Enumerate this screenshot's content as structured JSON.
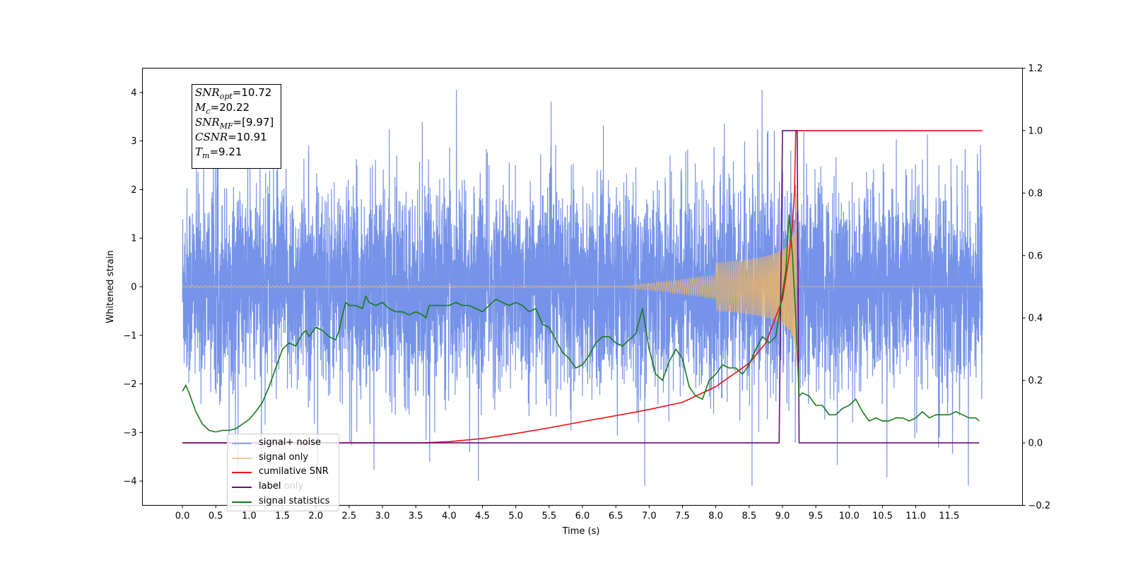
{
  "chart_data": {
    "type": "line",
    "xlabel": "Time (s)",
    "ylabel": "Whitened strain",
    "xlim": [
      -0.6,
      12.6
    ],
    "ylim": [
      -4.5,
      4.5
    ],
    "y2lim": [
      -0.2,
      1.2
    ],
    "x_ticks": [
      0.0,
      0.5,
      1.0,
      1.5,
      2.0,
      2.5,
      3.0,
      3.5,
      4.0,
      4.5,
      5.0,
      5.5,
      6.0,
      6.5,
      7.0,
      7.5,
      8.0,
      8.5,
      9.0,
      9.5,
      10.0,
      10.5,
      11.0,
      11.5
    ],
    "x_tick_labels": [
      "0.0",
      "0.5",
      "1.0",
      "1.5",
      "2.0",
      "2.5",
      "3.0",
      "3.5",
      "4.0",
      "4.5",
      "5.0",
      "5.5",
      "6.0",
      "6.5",
      "7.0",
      "7.5",
      "8.0",
      "8.5",
      "9.0",
      "9.5",
      "10.0",
      "10.5",
      "11.0",
      "11.5"
    ],
    "y_ticks": [
      -4,
      -3,
      -2,
      -1,
      0,
      1,
      2,
      3,
      4
    ],
    "y_tick_labels": [
      "−4",
      "−3",
      "−2",
      "−1",
      "0",
      "1",
      "2",
      "3",
      "4"
    ],
    "y2_ticks": [
      -0.2,
      0.0,
      0.2,
      0.4,
      0.6,
      0.8,
      1.0,
      1.2
    ],
    "y2_tick_labels": [
      "−0.2",
      "0.0",
      "0.2",
      "0.4",
      "0.6",
      "0.8",
      "1.0",
      "1.2"
    ],
    "grid": false,
    "legend_placement": "lower-left",
    "series": [
      {
        "name": "signal+ noise",
        "axis": "left",
        "color": "#6f8de8",
        "x_range": [
          0.0,
          12.0
        ],
        "approx_amplitude": 1.5,
        "approx_max": 4.05,
        "approx_min": -4.1
      },
      {
        "name": "signal only",
        "axis": "left",
        "color": "#e8b46a",
        "x_range": [
          0.0,
          12.0
        ],
        "chirp_merger_time": 9.21,
        "approx_peak_amplitude": 2.4
      },
      {
        "name": "cumilative SNR",
        "axis": "right",
        "color": "#ee1111",
        "x": [
          0.0,
          3.6,
          4.0,
          4.5,
          5.0,
          5.5,
          6.0,
          6.5,
          7.0,
          7.5,
          8.0,
          8.5,
          8.75,
          9.0,
          9.1,
          9.15,
          9.18,
          9.2,
          12.0
        ],
        "y": [
          0.0,
          0.0,
          0.004,
          0.014,
          0.03,
          0.048,
          0.068,
          0.087,
          0.107,
          0.13,
          0.18,
          0.255,
          0.32,
          0.46,
          0.6,
          0.7,
          0.8,
          1.0,
          1.0
        ]
      },
      {
        "name": "label",
        "axis": "right",
        "color": "#6b0d78",
        "x": [
          0.0,
          8.95,
          9.0,
          9.22,
          9.25,
          11.95
        ],
        "y": [
          0.0,
          0.0,
          1.0,
          1.0,
          0.0,
          0.0
        ]
      },
      {
        "name": "signal statistics",
        "axis": "right",
        "color": "#1a7a1a",
        "x": [
          0.0,
          0.05,
          0.1,
          0.2,
          0.3,
          0.4,
          0.5,
          0.6,
          0.7,
          0.8,
          0.9,
          1.0,
          1.1,
          1.2,
          1.3,
          1.4,
          1.5,
          1.6,
          1.7,
          1.8,
          1.85,
          1.9,
          2.0,
          2.1,
          2.2,
          2.3,
          2.35,
          2.4,
          2.45,
          2.5,
          2.6,
          2.7,
          2.75,
          2.8,
          2.9,
          3.0,
          3.1,
          3.2,
          3.3,
          3.4,
          3.5,
          3.6,
          3.65,
          3.7,
          3.8,
          3.9,
          4.0,
          4.1,
          4.2,
          4.3,
          4.4,
          4.5,
          4.6,
          4.7,
          4.8,
          4.9,
          5.0,
          5.1,
          5.2,
          5.3,
          5.4,
          5.5,
          5.6,
          5.7,
          5.8,
          5.9,
          6.0,
          6.1,
          6.2,
          6.3,
          6.4,
          6.5,
          6.6,
          6.7,
          6.8,
          6.9,
          7.0,
          7.1,
          7.2,
          7.3,
          7.4,
          7.5,
          7.6,
          7.7,
          7.8,
          7.9,
          8.0,
          8.1,
          8.2,
          8.3,
          8.4,
          8.5,
          8.6,
          8.7,
          8.8,
          8.9,
          9.0,
          9.05,
          9.1,
          9.15,
          9.2,
          9.25,
          9.3,
          9.4,
          9.5,
          9.6,
          9.7,
          9.8,
          9.9,
          10.0,
          10.1,
          10.2,
          10.3,
          10.4,
          10.5,
          10.6,
          10.7,
          10.8,
          10.9,
          11.0,
          11.1,
          11.2,
          11.3,
          11.4,
          11.5,
          11.6,
          11.7,
          11.8,
          11.9,
          11.95
        ],
        "y": [
          0.165,
          0.185,
          0.16,
          0.1,
          0.06,
          0.04,
          0.035,
          0.04,
          0.04,
          0.045,
          0.06,
          0.075,
          0.1,
          0.13,
          0.18,
          0.24,
          0.3,
          0.32,
          0.31,
          0.35,
          0.36,
          0.34,
          0.37,
          0.36,
          0.34,
          0.33,
          0.36,
          0.41,
          0.45,
          0.44,
          0.44,
          0.43,
          0.47,
          0.45,
          0.44,
          0.45,
          0.43,
          0.42,
          0.42,
          0.41,
          0.42,
          0.41,
          0.4,
          0.44,
          0.44,
          0.44,
          0.44,
          0.45,
          0.44,
          0.44,
          0.43,
          0.42,
          0.44,
          0.46,
          0.45,
          0.44,
          0.45,
          0.44,
          0.42,
          0.43,
          0.38,
          0.37,
          0.33,
          0.29,
          0.27,
          0.24,
          0.25,
          0.28,
          0.32,
          0.34,
          0.34,
          0.32,
          0.31,
          0.33,
          0.35,
          0.43,
          0.3,
          0.22,
          0.2,
          0.26,
          0.3,
          0.27,
          0.18,
          0.15,
          0.14,
          0.2,
          0.22,
          0.25,
          0.24,
          0.24,
          0.22,
          0.25,
          0.3,
          0.34,
          0.32,
          0.34,
          0.48,
          0.55,
          0.73,
          0.6,
          0.4,
          0.15,
          0.16,
          0.15,
          0.12,
          0.12,
          0.09,
          0.09,
          0.11,
          0.12,
          0.14,
          0.1,
          0.07,
          0.08,
          0.07,
          0.07,
          0.08,
          0.08,
          0.07,
          0.08,
          0.1,
          0.08,
          0.09,
          0.09,
          0.09,
          0.1,
          0.09,
          0.08,
          0.08,
          0.07
        ]
      }
    ],
    "legend": [
      "signal+ noise",
      "signal only",
      "cumilative SNR",
      "label",
      "signal statistics"
    ],
    "legend_overlap_text": "label only"
  },
  "annotation_box": {
    "snr_opt": "=10.72",
    "mc": "=20.22",
    "snr_mf": "=[9.97]",
    "csnr": "=10.91",
    "tm": "=9.21"
  }
}
